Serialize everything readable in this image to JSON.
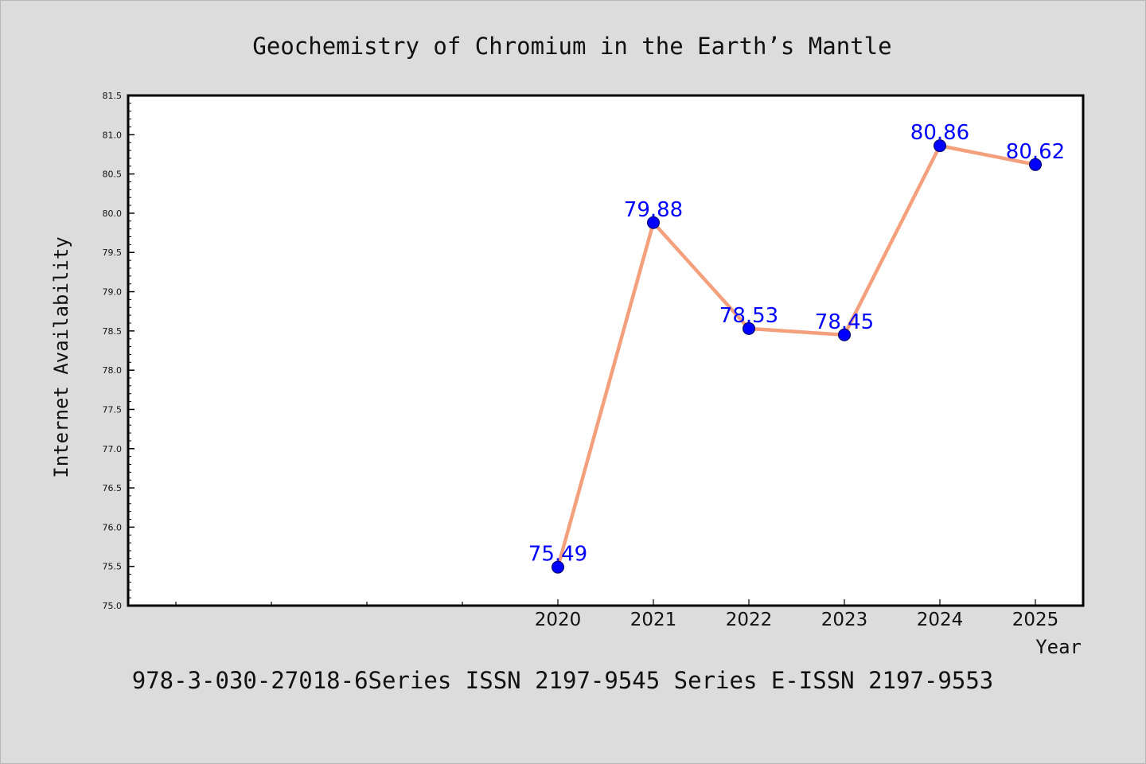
{
  "chart_data": {
    "type": "line",
    "title": "Geochemistry of Chromium in the Earth’s Mantle",
    "xlabel": "Year",
    "ylabel": "Internet Availability",
    "footer": "978-3-030-27018-6Series ISSN 2197-9545 Series E-ISSN 2197-9553",
    "x": [
      "2020",
      "2021",
      "2022",
      "2023",
      "2024",
      "2025"
    ],
    "series": [
      {
        "values": [
          75.49,
          79.88,
          78.53,
          78.45,
          80.86,
          80.62
        ],
        "labels": [
          "75.49",
          "79.88",
          "78.53",
          "78.45",
          "80.86",
          "80.62"
        ],
        "line_color": "#f4a07c",
        "marker_color": "#0000ff"
      }
    ],
    "ylim": [
      75.0,
      81.5
    ],
    "yticks": [
      "75.0",
      "75.5",
      "76.0",
      "76.5",
      "77.0",
      "77.5",
      "78.0",
      "78.5",
      "79.0",
      "79.5",
      "80.0",
      "80.5",
      "81.0",
      "81.5"
    ],
    "grid": false,
    "legend": "none",
    "colors": {
      "figure_background": "#dcdcdc",
      "plot_background": "#ffffff",
      "label_color": "#0000ff",
      "text_color": "#111111"
    }
  }
}
